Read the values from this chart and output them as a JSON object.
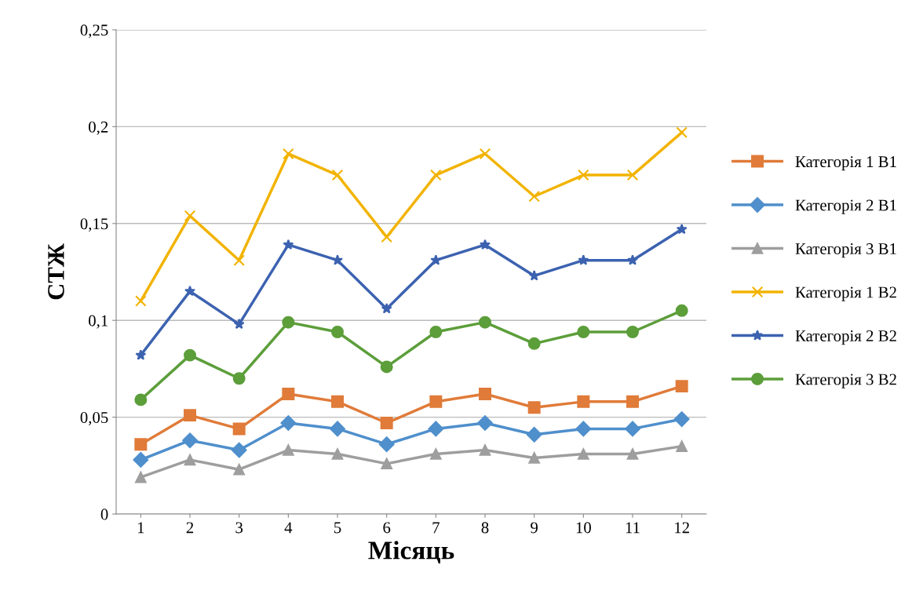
{
  "chart_data": {
    "type": "line",
    "xlabel": "Місяць",
    "ylabel": "СТЖ",
    "categories": [
      "1",
      "2",
      "3",
      "4",
      "5",
      "6",
      "7",
      "8",
      "9",
      "10",
      "11",
      "12"
    ],
    "ylim": [
      0,
      0.25
    ],
    "yticks": [
      0,
      {
        "value": 0.05,
        "label": "0,05"
      },
      {
        "value": 0.1,
        "label": "0,1"
      },
      {
        "value": 0.15,
        "label": "0,15"
      },
      {
        "value": 0.2,
        "label": "0,2"
      },
      {
        "value": 0.25,
        "label": "0,25"
      }
    ],
    "grid": "y",
    "legend": "right",
    "line_style": "solid",
    "series": [
      {
        "name": "Категорія 1 В1",
        "color": "#e07b39",
        "marker": "square",
        "values": [
          0.036,
          0.051,
          0.044,
          0.062,
          0.058,
          0.047,
          0.058,
          0.062,
          0.055,
          0.058,
          0.058,
          0.066
        ]
      },
      {
        "name": "Категорія 2 В1",
        "color": "#4f8fcc",
        "marker": "diamond",
        "values": [
          0.028,
          0.038,
          0.033,
          0.047,
          0.044,
          0.036,
          0.044,
          0.047,
          0.041,
          0.044,
          0.044,
          0.049
        ]
      },
      {
        "name": "Категорія 3 В1",
        "color": "#9e9e9e",
        "marker": "triangle",
        "values": [
          0.019,
          0.028,
          0.023,
          0.033,
          0.031,
          0.026,
          0.031,
          0.033,
          0.029,
          0.031,
          0.031,
          0.035
        ]
      },
      {
        "name": "Категорія 1 В2",
        "color": "#f2b300",
        "marker": "cross",
        "values": [
          0.11,
          0.154,
          0.131,
          0.186,
          0.175,
          0.143,
          0.175,
          0.186,
          0.164,
          0.175,
          0.175,
          0.197
        ]
      },
      {
        "name": "Категорія 2 В2",
        "color": "#3c62b0",
        "marker": "star",
        "values": [
          0.082,
          0.115,
          0.098,
          0.139,
          0.131,
          0.106,
          0.131,
          0.139,
          0.123,
          0.131,
          0.131,
          0.147
        ]
      },
      {
        "name": "Категорія 3 В2",
        "color": "#5c9e3a",
        "marker": "circle",
        "values": [
          0.059,
          0.082,
          0.07,
          0.099,
          0.094,
          0.076,
          0.094,
          0.099,
          0.088,
          0.094,
          0.094,
          0.105
        ]
      }
    ]
  }
}
